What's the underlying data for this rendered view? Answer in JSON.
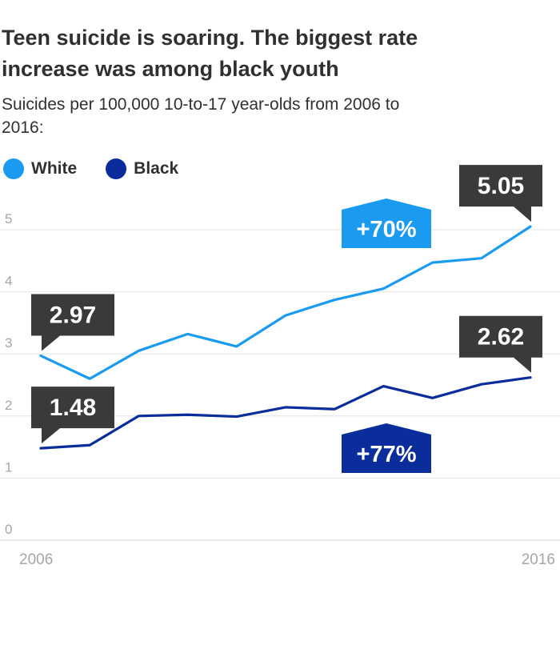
{
  "header": {
    "title": "Teen suicide is soaring. The biggest rate increase was among black youth",
    "subtitle": "Suicides per 100,000 10-to-17 year-olds from 2006 to 2016:"
  },
  "legend": [
    {
      "label": "White",
      "color": "#1b9bf0"
    },
    {
      "label": "Black",
      "color": "#0b2d9b"
    }
  ],
  "callout_color": "#3a3a3a",
  "chart_data": {
    "type": "line",
    "title": "Teen suicide is soaring. The biggest rate increase was among black youth",
    "subtitle": "Suicides per 100,000 10-to-17 year-olds from 2006 to 2016:",
    "x": [
      2006,
      2007,
      2008,
      2009,
      2010,
      2011,
      2012,
      2013,
      2014,
      2015,
      2016
    ],
    "x_tick_labels": [
      "2006",
      "2016"
    ],
    "y_ticks": [
      0,
      1,
      2,
      3,
      4,
      5
    ],
    "ylim": [
      0,
      5.3
    ],
    "grid": true,
    "legend_position": "top-left",
    "series": [
      {
        "name": "White",
        "color": "#1b9bf0",
        "values": [
          2.97,
          2.6,
          3.05,
          3.32,
          3.12,
          3.62,
          3.87,
          4.05,
          4.47,
          4.54,
          5.05
        ]
      },
      {
        "name": "Black",
        "color": "#0b2d9b",
        "values": [
          1.48,
          1.53,
          2.0,
          2.02,
          1.99,
          2.14,
          2.11,
          2.48,
          2.29,
          2.51,
          2.62
        ]
      }
    ],
    "annotations": [
      {
        "series": "White",
        "x": 2006,
        "label": "2.97",
        "kind": "value"
      },
      {
        "series": "White",
        "x": 2016,
        "label": "5.05",
        "kind": "value"
      },
      {
        "series": "Black",
        "x": 2006,
        "label": "1.48",
        "kind": "value"
      },
      {
        "series": "Black",
        "x": 2016,
        "label": "2.62",
        "kind": "value"
      },
      {
        "series": "White",
        "label": "+70%",
        "kind": "change"
      },
      {
        "series": "Black",
        "label": "+77%",
        "kind": "change"
      }
    ]
  }
}
